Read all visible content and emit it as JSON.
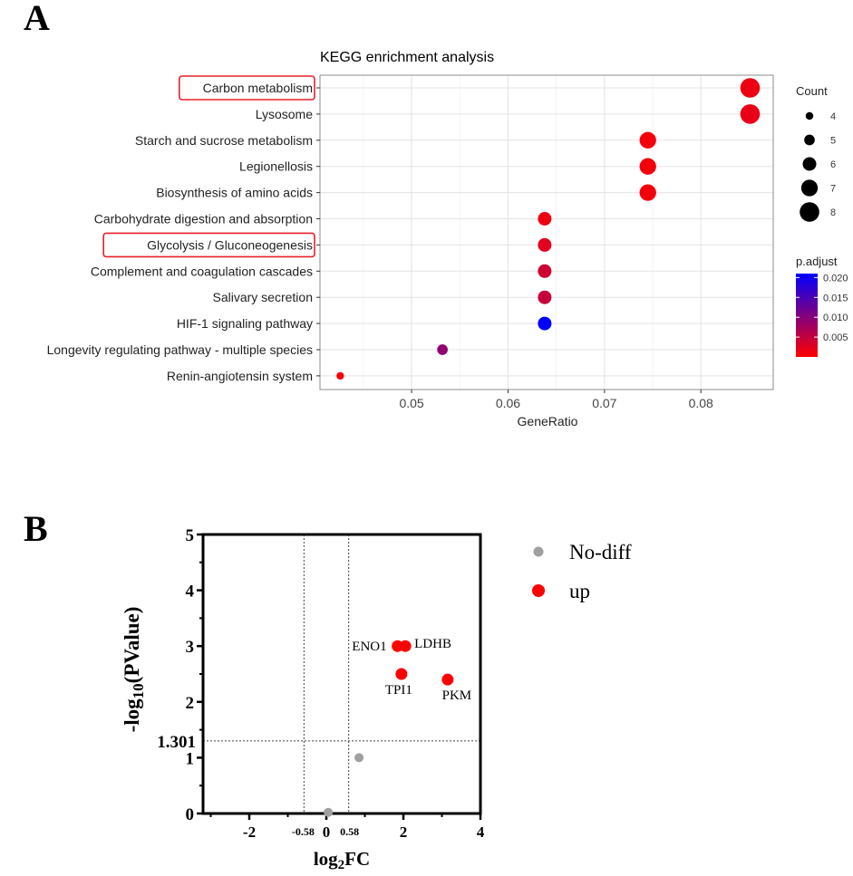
{
  "panel_a_label": "A",
  "panel_b_label": "B",
  "chart_data": [
    {
      "type": "scatter",
      "title": "KEGG enrichment analysis",
      "xlabel": "GeneRatio",
      "ylabel": "",
      "xlim": [
        0.0405,
        0.0875
      ],
      "xticks": [
        0.05,
        0.06,
        0.07,
        0.08
      ],
      "xtick_labels": [
        "0.05",
        "0.06",
        "0.07",
        "0.08"
      ],
      "categories": [
        "Carbon metabolism",
        "Lysosome",
        "Starch and sucrose metabolism",
        "Legionellosis",
        "Biosynthesis of amino acids",
        "Carbohydrate digestion and absorption",
        "Glycolysis / Gluconeogenesis",
        "Complement and coagulation cascades",
        "Salivary secretion",
        "HIF-1 signaling pathway",
        "Longevity regulating pathway - multiple species",
        "Renin-angiotensin system"
      ],
      "highlighted": [
        "Carbon metabolism",
        "Glycolysis / Gluconeogenesis"
      ],
      "gene_ratio": [
        0.0851,
        0.0851,
        0.0745,
        0.0745,
        0.0745,
        0.0638,
        0.0638,
        0.0638,
        0.0638,
        0.0638,
        0.0532,
        0.0426
      ],
      "count": [
        8,
        8,
        7,
        7,
        7,
        6,
        6,
        6,
        6,
        6,
        5,
        4
      ],
      "p_adjust": [
        0.0015,
        0.0018,
        0.0008,
        0.0008,
        0.0008,
        0.0015,
        0.0025,
        0.004,
        0.0048,
        0.021,
        0.009,
        0.0008
      ],
      "legend_size": {
        "title": "Count",
        "values": [
          4,
          5,
          6,
          7,
          8
        ],
        "labels": [
          "4",
          "5",
          "6",
          "7",
          "8"
        ]
      },
      "legend_color": {
        "title": "p.adjust",
        "range": [
          0.0,
          0.021
        ],
        "ticks": [
          0.005,
          0.01,
          0.015,
          0.02
        ],
        "tick_labels": [
          "0.005",
          "0.010",
          "0.015",
          "0.020"
        ],
        "low_color": "#ff0000",
        "high_color": "#0000ff"
      },
      "grid": true,
      "highlight_box_color": "#e8202a"
    },
    {
      "type": "scatter",
      "title": "",
      "xlabel_main": "log",
      "xlabel_sub": "2",
      "xlabel_tail": "FC",
      "ylabel_main": "-log",
      "ylabel_sub": "10",
      "ylabel_tail": "(PValue)",
      "xlim": [
        -3.2,
        4
      ],
      "ylim": [
        0,
        5
      ],
      "xticks": [
        -2,
        0,
        2,
        4
      ],
      "xtick_labels": [
        "-2",
        "0",
        "2",
        "4"
      ],
      "yticks": [
        0,
        1,
        2,
        3,
        4,
        5
      ],
      "ytick_labels": [
        "0",
        "1",
        "2",
        "3",
        "4",
        "5"
      ],
      "x_threshold_lines": [
        -0.58,
        0.58
      ],
      "x_threshold_labels": [
        "-0.58",
        "0.58"
      ],
      "y_threshold_line": 1.301,
      "y_threshold_label": "1.301",
      "series": [
        {
          "name": "No-diff",
          "color": "#a0a0a0",
          "points": [
            {
              "x": 0.05,
              "y": 0.02,
              "label": ""
            },
            {
              "x": 0.85,
              "y": 1.0,
              "label": ""
            }
          ]
        },
        {
          "name": "up",
          "color": "#ff0000",
          "points": [
            {
              "x": 1.85,
              "y": 3.0,
              "label": "ENO1"
            },
            {
              "x": 2.05,
              "y": 3.0,
              "label": "LDHB"
            },
            {
              "x": 1.95,
              "y": 2.5,
              "label": "TPI1"
            },
            {
              "x": 3.15,
              "y": 2.4,
              "label": "PKM"
            }
          ]
        }
      ]
    }
  ]
}
